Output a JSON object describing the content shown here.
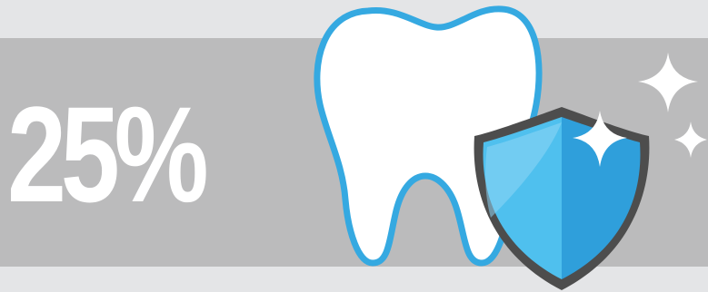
{
  "stat": {
    "value": "25%"
  },
  "icons": {
    "tooth": "tooth-icon",
    "shield": "shield-icon",
    "sparkles": "sparkle-icon"
  },
  "colors": {
    "background": "#e4e5e7",
    "band": "#bbbbbc",
    "text": "#ffffff",
    "accent_blue": "#35a9e1",
    "shield_light": "#4fc0ee",
    "shield_dark": "#2f9fdb",
    "shield_rim": "#4d4d4d"
  }
}
